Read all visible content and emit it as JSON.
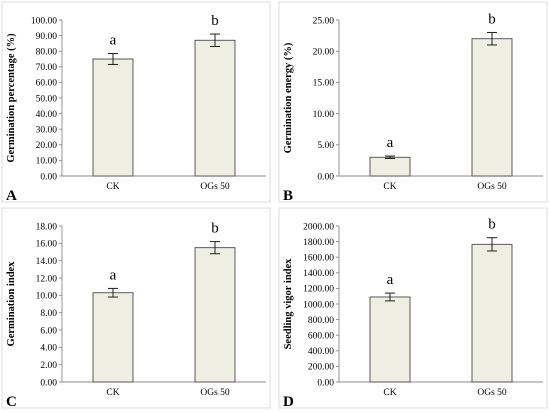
{
  "figure": {
    "colors": {
      "bar_fill": "#efeee2",
      "bar_stroke": "#4a4a4a",
      "axis": "#8a8a8a",
      "frame": "#d4d4d4"
    }
  },
  "chart_data": [
    {
      "type": "bar",
      "panel_label": "A",
      "ylabel": "Germination percentage (%)",
      "categories": [
        "CK",
        "OGs 50"
      ],
      "values": [
        75.0,
        87.0
      ],
      "errors": [
        3.5,
        4.0
      ],
      "significance": [
        "a",
        "b"
      ],
      "ylim": [
        0,
        100
      ],
      "yticks": [
        "0.00",
        "10.00",
        "20.00",
        "30.00",
        "40.00",
        "50.00",
        "60.00",
        "70.00",
        "80.00",
        "90.00",
        "100.00"
      ],
      "grid": false
    },
    {
      "type": "bar",
      "panel_label": "B",
      "ylabel": "Germination energy (%)",
      "categories": [
        "CK",
        "OGs 50"
      ],
      "values": [
        3.0,
        22.0
      ],
      "errors": [
        0.2,
        1.0
      ],
      "significance": [
        "a",
        "b"
      ],
      "ylim": [
        0,
        25
      ],
      "yticks": [
        "0.00",
        "5.00",
        "10.00",
        "15.00",
        "20.00",
        "25.00"
      ],
      "grid": false
    },
    {
      "type": "bar",
      "panel_label": "C",
      "ylabel": "Germination index",
      "categories": [
        "CK",
        "OGs 50"
      ],
      "values": [
        10.3,
        15.5
      ],
      "errors": [
        0.5,
        0.7
      ],
      "significance": [
        "a",
        "b"
      ],
      "ylim": [
        0,
        18
      ],
      "yticks": [
        "0.00",
        "2.00",
        "4.00",
        "6.00",
        "8.00",
        "10.00",
        "12.00",
        "14.00",
        "16.00",
        "18.00"
      ],
      "grid": false
    },
    {
      "type": "bar",
      "panel_label": "D",
      "ylabel": "Seedling vigor index",
      "categories": [
        "CK",
        "OGs 50"
      ],
      "values": [
        1090,
        1765
      ],
      "errors": [
        50,
        85
      ],
      "significance": [
        "a",
        "b"
      ],
      "ylim": [
        0,
        2000
      ],
      "yticks": [
        "0.00",
        "200.00",
        "400.00",
        "600.00",
        "800.00",
        "1000.00",
        "1200.00",
        "1400.00",
        "1600.00",
        "1800.00",
        "2000.00"
      ],
      "grid": false
    }
  ]
}
